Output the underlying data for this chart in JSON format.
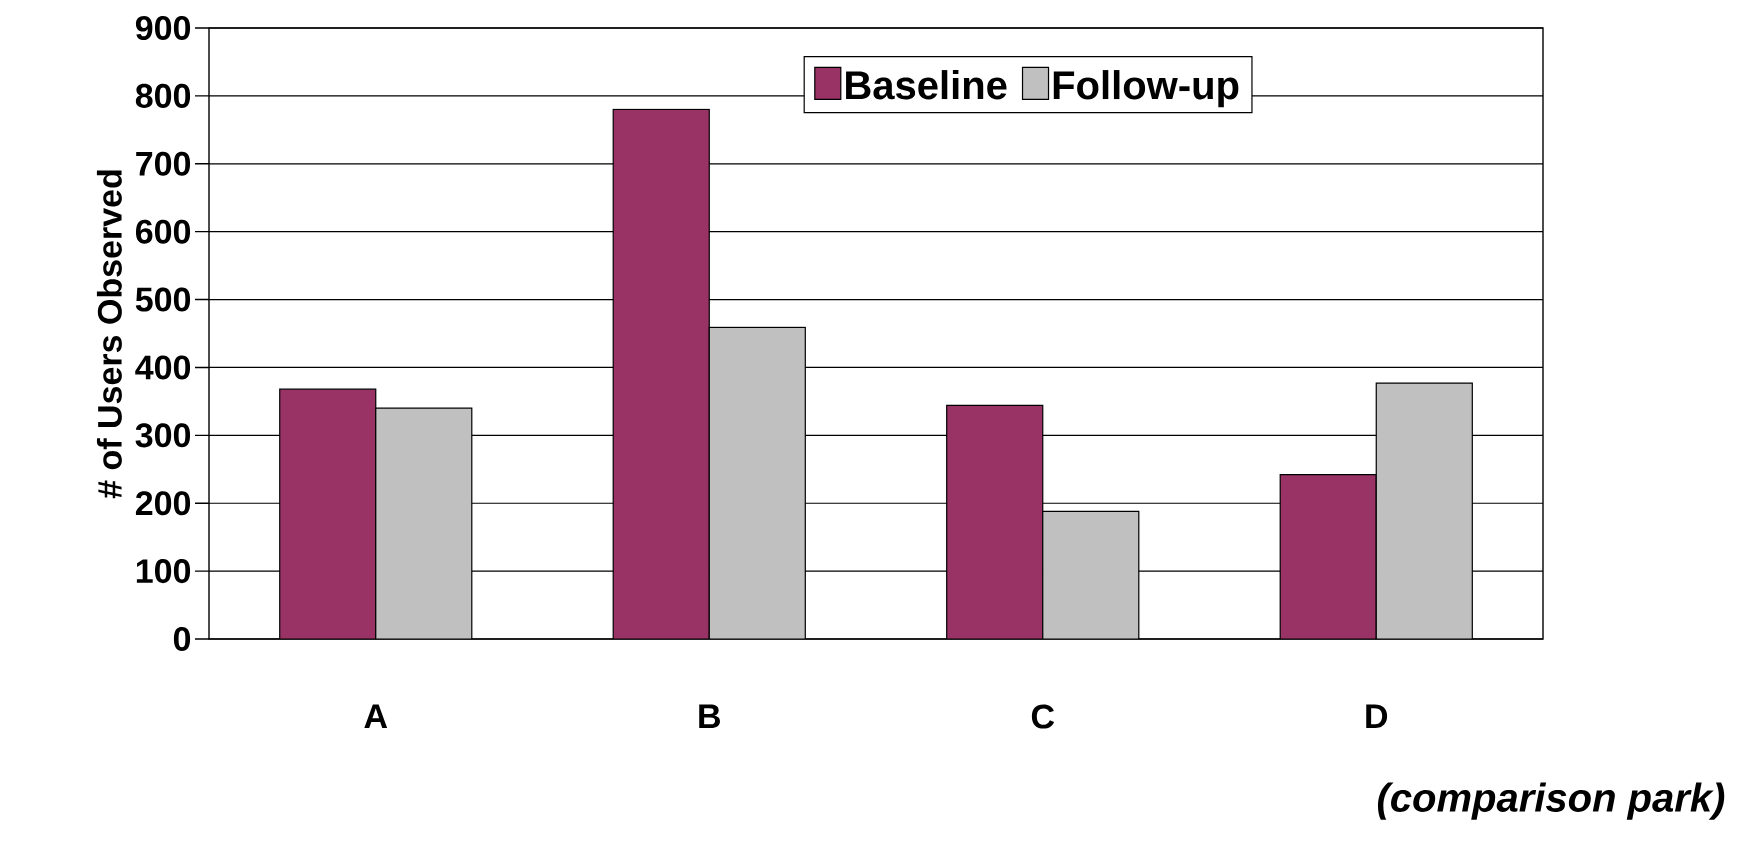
{
  "chart_data": {
    "type": "bar",
    "ylabel": "# of Users Observed",
    "xlabel": "(comparison park)",
    "categories": [
      "A",
      "B",
      "C",
      "D"
    ],
    "series": [
      {
        "name": "Baseline",
        "color": "#993366",
        "values": [
          368,
          780,
          344,
          242
        ]
      },
      {
        "name": "Follow-up",
        "color": "#c0c0c0",
        "values": [
          340,
          459,
          188,
          377
        ]
      }
    ],
    "ylim": [
      0,
      900
    ],
    "yticks": [
      0,
      100,
      200,
      300,
      400,
      500,
      600,
      700,
      800,
      900
    ],
    "grid": "y",
    "legend": "top"
  }
}
